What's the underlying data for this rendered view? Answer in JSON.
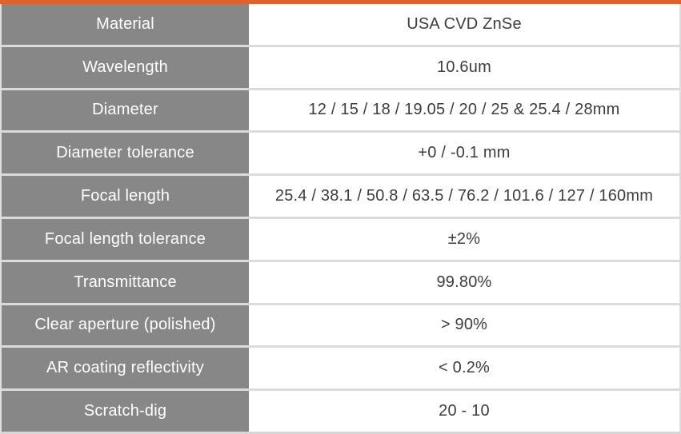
{
  "colors": {
    "accent_orange": "#E0612D",
    "label_bg_gray": "#878787",
    "divider_gray": "#DBDBDB",
    "value_text_gray": "#3D3D3D",
    "label_text_white": "#FFFFFF"
  },
  "table": {
    "rows": [
      {
        "label": "Material",
        "value": "USA CVD ZnSe"
      },
      {
        "label": "Wavelength",
        "value": "10.6um"
      },
      {
        "label": "Diameter",
        "value": "12 / 15 / 18 / 19.05 / 20 / 25 & 25.4 / 28mm"
      },
      {
        "label": "Diameter tolerance",
        "value": "+0 / -0.1 mm"
      },
      {
        "label": "Focal length",
        "value": "25.4 / 38.1 / 50.8 / 63.5 / 76.2 / 101.6 / 127 / 160mm"
      },
      {
        "label": "Focal length tolerance",
        "value": "±2%"
      },
      {
        "label": "Transmittance",
        "value": "99.80%"
      },
      {
        "label": "Clear aperture (polished)",
        "value": "> 90%"
      },
      {
        "label": "AR coating reflectivity",
        "value": "< 0.2%"
      },
      {
        "label": "Scratch-dig",
        "value": "20 - 10"
      }
    ]
  }
}
